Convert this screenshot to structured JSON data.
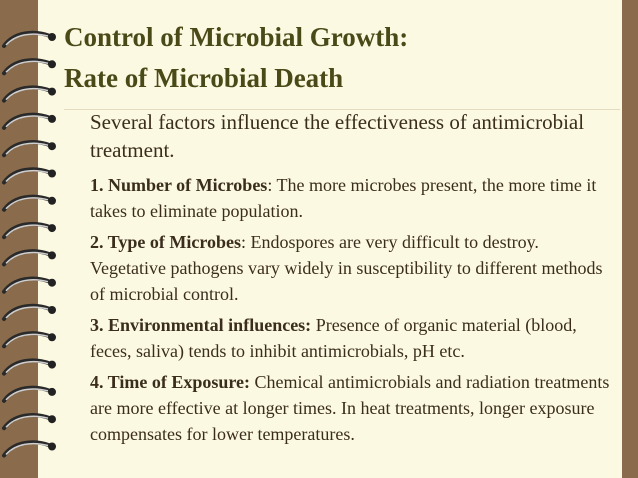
{
  "title": {
    "line1": "Control of Microbial Growth:",
    "line2": "Rate of Microbial Death"
  },
  "intro": "Several factors influence the effectiveness of antimicrobial treatment.",
  "items": [
    {
      "label": "1. Number of Microbes",
      "text": ":  The more microbes present, the more time it takes to eliminate population."
    },
    {
      "label": "2. Type of Microbes",
      "text": ": Endospores are very difficult to destroy.  Vegetative pathogens vary widely in susceptibility to different methods of microbial control."
    },
    {
      "label": "3. Environmental influences:",
      "text": " Presence of organic material (blood, feces, saliva) tends to inhibit antimicrobials, pH etc."
    },
    {
      "label": "4. Time of Exposure:",
      "text": " Chemical antimicrobials and radiation treatments are more effective at longer times. In heat treatments, longer exposure compensates for lower temperatures."
    }
  ]
}
